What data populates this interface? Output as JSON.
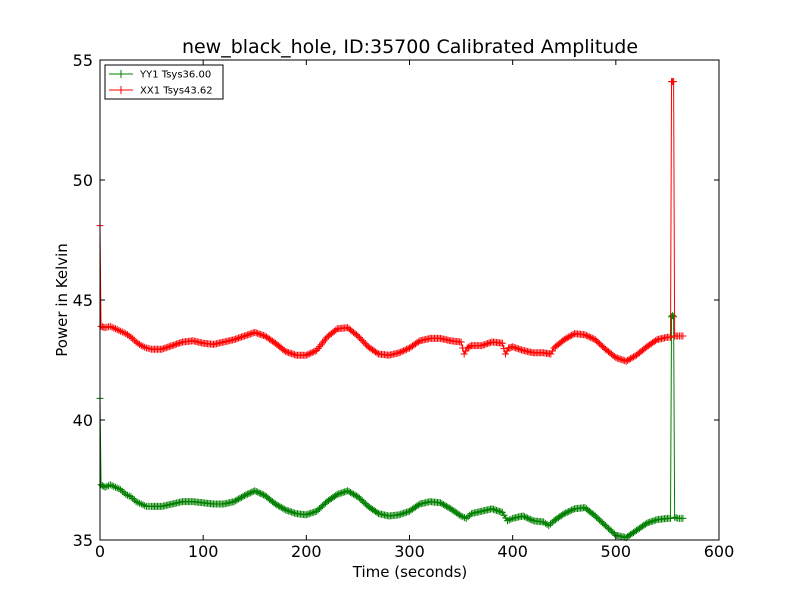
{
  "chart_data": {
    "type": "line",
    "title": "new_black_hole, ID:35700 Calibrated Amplitude",
    "xlabel": "Time (seconds)",
    "ylabel": "Power in Kelvin",
    "xlim": [
      0,
      600
    ],
    "ylim": [
      35,
      55
    ],
    "xticks": [
      0,
      100,
      200,
      300,
      400,
      500,
      600
    ],
    "yticks": [
      35,
      40,
      45,
      50,
      55
    ],
    "grid": false,
    "legend_position": "top-left",
    "series": [
      {
        "name": "YY1 Tsys36.00",
        "color": "#008000",
        "marker": "+",
        "points": [
          [
            0,
            40.9
          ],
          [
            1,
            37.3
          ],
          [
            5,
            37.2
          ],
          [
            10,
            37.3
          ],
          [
            15,
            37.2
          ],
          [
            20,
            37.1
          ],
          [
            25,
            36.9
          ],
          [
            30,
            36.8
          ],
          [
            35,
            36.6
          ],
          [
            40,
            36.5
          ],
          [
            45,
            36.4
          ],
          [
            50,
            36.4
          ],
          [
            60,
            36.4
          ],
          [
            70,
            36.5
          ],
          [
            80,
            36.6
          ],
          [
            90,
            36.6
          ],
          [
            100,
            36.55
          ],
          [
            110,
            36.5
          ],
          [
            120,
            36.5
          ],
          [
            130,
            36.6
          ],
          [
            140,
            36.85
          ],
          [
            150,
            37.05
          ],
          [
            160,
            36.85
          ],
          [
            170,
            36.5
          ],
          [
            180,
            36.25
          ],
          [
            190,
            36.1
          ],
          [
            200,
            36.05
          ],
          [
            210,
            36.2
          ],
          [
            220,
            36.6
          ],
          [
            230,
            36.9
          ],
          [
            240,
            37.05
          ],
          [
            250,
            36.8
          ],
          [
            260,
            36.4
          ],
          [
            270,
            36.1
          ],
          [
            280,
            36.0
          ],
          [
            290,
            36.05
          ],
          [
            300,
            36.2
          ],
          [
            310,
            36.5
          ],
          [
            320,
            36.6
          ],
          [
            330,
            36.55
          ],
          [
            340,
            36.3
          ],
          [
            350,
            36.0
          ],
          [
            355,
            35.9
          ],
          [
            360,
            36.1
          ],
          [
            370,
            36.2
          ],
          [
            380,
            36.3
          ],
          [
            390,
            36.15
          ],
          [
            395,
            35.8
          ],
          [
            400,
            35.9
          ],
          [
            410,
            36.0
          ],
          [
            420,
            35.8
          ],
          [
            430,
            35.75
          ],
          [
            435,
            35.6
          ],
          [
            440,
            35.8
          ],
          [
            450,
            36.1
          ],
          [
            460,
            36.3
          ],
          [
            470,
            36.35
          ],
          [
            480,
            36.0
          ],
          [
            490,
            35.6
          ],
          [
            500,
            35.2
          ],
          [
            510,
            35.1
          ],
          [
            520,
            35.4
          ],
          [
            530,
            35.7
          ],
          [
            540,
            35.85
          ],
          [
            550,
            35.9
          ],
          [
            553,
            35.9
          ],
          [
            554,
            44.3
          ],
          [
            555,
            44.35
          ],
          [
            556,
            44.3
          ],
          [
            557,
            35.95
          ],
          [
            560,
            35.9
          ],
          [
            565,
            35.9
          ]
        ]
      },
      {
        "name": "XX1 Tsys43.62",
        "color": "#ff0000",
        "marker": "+",
        "points": [
          [
            0,
            48.1
          ],
          [
            1,
            43.9
          ],
          [
            5,
            43.85
          ],
          [
            10,
            43.9
          ],
          [
            15,
            43.8
          ],
          [
            20,
            43.7
          ],
          [
            25,
            43.6
          ],
          [
            30,
            43.45
          ],
          [
            35,
            43.25
          ],
          [
            40,
            43.1
          ],
          [
            45,
            43.0
          ],
          [
            50,
            42.95
          ],
          [
            60,
            42.95
          ],
          [
            70,
            43.1
          ],
          [
            80,
            43.25
          ],
          [
            90,
            43.3
          ],
          [
            100,
            43.2
          ],
          [
            110,
            43.15
          ],
          [
            120,
            43.25
          ],
          [
            130,
            43.35
          ],
          [
            140,
            43.5
          ],
          [
            150,
            43.65
          ],
          [
            160,
            43.5
          ],
          [
            170,
            43.2
          ],
          [
            180,
            42.85
          ],
          [
            190,
            42.7
          ],
          [
            200,
            42.7
          ],
          [
            210,
            42.9
          ],
          [
            220,
            43.45
          ],
          [
            230,
            43.8
          ],
          [
            240,
            43.85
          ],
          [
            250,
            43.5
          ],
          [
            260,
            43.05
          ],
          [
            270,
            42.75
          ],
          [
            280,
            42.7
          ],
          [
            290,
            42.8
          ],
          [
            300,
            43.0
          ],
          [
            310,
            43.3
          ],
          [
            320,
            43.4
          ],
          [
            330,
            43.4
          ],
          [
            340,
            43.3
          ],
          [
            350,
            43.25
          ],
          [
            353,
            42.75
          ],
          [
            356,
            43.0
          ],
          [
            360,
            43.1
          ],
          [
            370,
            43.1
          ],
          [
            380,
            43.25
          ],
          [
            390,
            43.2
          ],
          [
            393,
            42.75
          ],
          [
            396,
            43.0
          ],
          [
            400,
            43.05
          ],
          [
            410,
            42.9
          ],
          [
            420,
            42.8
          ],
          [
            430,
            42.8
          ],
          [
            437,
            42.75
          ],
          [
            440,
            43.0
          ],
          [
            450,
            43.35
          ],
          [
            460,
            43.6
          ],
          [
            470,
            43.55
          ],
          [
            480,
            43.35
          ],
          [
            490,
            42.95
          ],
          [
            500,
            42.6
          ],
          [
            510,
            42.45
          ],
          [
            520,
            42.7
          ],
          [
            530,
            43.05
          ],
          [
            540,
            43.35
          ],
          [
            550,
            43.45
          ],
          [
            553,
            43.45
          ],
          [
            554,
            54.1
          ],
          [
            555,
            54.1
          ],
          [
            556,
            54.1
          ],
          [
            557,
            43.5
          ],
          [
            560,
            43.5
          ],
          [
            565,
            43.5
          ]
        ]
      }
    ]
  }
}
